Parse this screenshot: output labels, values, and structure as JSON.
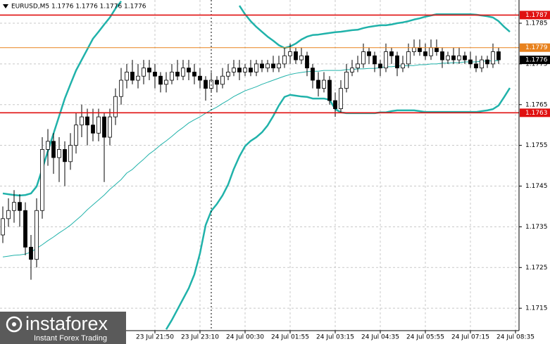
{
  "chart_data": {
    "type": "candlestick",
    "title": "EURUSD,M5  1.1776 1.1776 1.1776 1.1776",
    "ylim": [
      1.17095,
      1.17907
    ],
    "yticks": [
      1.1715,
      1.1725,
      1.1735,
      1.1745,
      1.1755,
      1.1765,
      1.1775,
      1.1785
    ],
    "grid": true,
    "categories": [
      null,
      null,
      null,
      null,
      null,
      null,
      null,
      null,
      null,
      null,
      null,
      null,
      null,
      null,
      null,
      null,
      null,
      null,
      null,
      null,
      null,
      null,
      null,
      null,
      null,
      null,
      null,
      "23 Jul 21:50",
      null,
      null,
      null,
      null,
      null,
      null,
      null,
      "23 Jul 23:10",
      null,
      null,
      null,
      null,
      null,
      null,
      null,
      "24 Jul 00:30",
      null,
      null,
      null,
      null,
      null,
      null,
      null,
      "24 Jul 01:55",
      null,
      null,
      null,
      null,
      null,
      null,
      null,
      "24 Jul 03:15",
      null,
      null,
      null,
      null,
      null,
      null,
      null,
      "24 Jul 04:35",
      null,
      null,
      null,
      null,
      null,
      null,
      null,
      "24 Jul 05:55",
      null,
      null,
      null,
      null,
      null,
      null,
      null,
      "24 Jul 07:15",
      null,
      null,
      null,
      null,
      null,
      null,
      null,
      "24 Jul 08:35"
    ],
    "ohlc": [
      [
        1.1733,
        1.174,
        1.1731,
        1.1737
      ],
      [
        1.1737,
        1.1742,
        1.1735,
        1.1739
      ],
      [
        1.1739,
        1.1744,
        1.1736,
        1.1741
      ],
      [
        1.1741,
        1.1743,
        1.1735,
        1.1739
      ],
      [
        1.1739,
        1.1741,
        1.1728,
        1.173
      ],
      [
        1.173,
        1.1733,
        1.1722,
        1.1727
      ],
      [
        1.1727,
        1.1742,
        1.1725,
        1.1739
      ],
      [
        1.1739,
        1.1757,
        1.1737,
        1.1754
      ],
      [
        1.1754,
        1.1759,
        1.175,
        1.1756
      ],
      [
        1.1756,
        1.1758,
        1.1748,
        1.1752
      ],
      [
        1.1752,
        1.1757,
        1.1746,
        1.1754
      ],
      [
        1.1754,
        1.1756,
        1.1745,
        1.1751
      ],
      [
        1.1751,
        1.1758,
        1.1749,
        1.1755
      ],
      [
        1.1755,
        1.1763,
        1.1753,
        1.176
      ],
      [
        1.176,
        1.1765,
        1.1757,
        1.1762
      ],
      [
        1.1762,
        1.1764,
        1.1755,
        1.176
      ],
      [
        1.176,
        1.1764,
        1.1756,
        1.1758
      ],
      [
        1.1758,
        1.1764,
        1.1756,
        1.1762
      ],
      [
        1.1762,
        1.1763,
        1.1746,
        1.1757
      ],
      [
        1.1757,
        1.1764,
        1.1755,
        1.1762
      ],
      [
        1.1762,
        1.1769,
        1.176,
        1.1767
      ],
      [
        1.1767,
        1.1774,
        1.1765,
        1.1771
      ],
      [
        1.1771,
        1.1775,
        1.1769,
        1.1773
      ],
      [
        1.1773,
        1.1776,
        1.177,
        1.1771
      ],
      [
        1.1771,
        1.1775,
        1.1769,
        1.1772
      ],
      [
        1.1772,
        1.1776,
        1.177,
        1.1774
      ],
      [
        1.1774,
        1.1776,
        1.1771,
        1.1773
      ],
      [
        1.1773,
        1.1775,
        1.1769,
        1.1772
      ],
      [
        1.1772,
        1.1773,
        1.1768,
        1.177
      ],
      [
        1.177,
        1.1773,
        1.1768,
        1.1771
      ],
      [
        1.1771,
        1.1775,
        1.177,
        1.1773
      ],
      [
        1.1773,
        1.1776,
        1.1771,
        1.1772
      ],
      [
        1.1772,
        1.1776,
        1.1771,
        1.1774
      ],
      [
        1.1774,
        1.1776,
        1.1771,
        1.1773
      ],
      [
        1.1773,
        1.1775,
        1.177,
        1.1772
      ],
      [
        1.1772,
        1.1774,
        1.1769,
        1.1771
      ],
      [
        1.1771,
        1.1772,
        1.1766,
        1.1769
      ],
      [
        1.1769,
        1.1773,
        1.1768,
        1.1771
      ],
      [
        1.1771,
        1.1772,
        1.1768,
        1.177
      ],
      [
        1.177,
        1.1774,
        1.1769,
        1.1772
      ],
      [
        1.1772,
        1.1775,
        1.1771,
        1.1773
      ],
      [
        1.1773,
        1.1776,
        1.1772,
        1.1774
      ],
      [
        1.1774,
        1.1776,
        1.1771,
        1.1773
      ],
      [
        1.1773,
        1.1775,
        1.1772,
        1.1774
      ],
      [
        1.1774,
        1.1776,
        1.1772,
        1.1773
      ],
      [
        1.1773,
        1.1776,
        1.1772,
        1.1775
      ],
      [
        1.1775,
        1.1776,
        1.1773,
        1.1774
      ],
      [
        1.1774,
        1.1776,
        1.1773,
        1.1775
      ],
      [
        1.1775,
        1.1777,
        1.1773,
        1.1774
      ],
      [
        1.1774,
        1.1777,
        1.1773,
        1.1775
      ],
      [
        1.1775,
        1.1779,
        1.1774,
        1.1777
      ],
      [
        1.1777,
        1.178,
        1.1775,
        1.1778
      ],
      [
        1.1778,
        1.1779,
        1.1775,
        1.1776
      ],
      [
        1.1776,
        1.1779,
        1.1775,
        1.1777
      ],
      [
        1.1777,
        1.1778,
        1.1772,
        1.1774
      ],
      [
        1.1774,
        1.1775,
        1.1769,
        1.1771
      ],
      [
        1.1771,
        1.1773,
        1.1767,
        1.1769
      ],
      [
        1.1769,
        1.1773,
        1.1768,
        1.1771
      ],
      [
        1.1771,
        1.1772,
        1.1765,
        1.1766
      ],
      [
        1.1766,
        1.1768,
        1.1762,
        1.1764
      ],
      [
        1.1764,
        1.1771,
        1.1763,
        1.1769
      ],
      [
        1.1769,
        1.1775,
        1.1768,
        1.1773
      ],
      [
        1.1773,
        1.1776,
        1.1772,
        1.1774
      ],
      [
        1.1774,
        1.1777,
        1.1773,
        1.1775
      ],
      [
        1.1775,
        1.178,
        1.1774,
        1.1778
      ],
      [
        1.1778,
        1.1779,
        1.1775,
        1.1777
      ],
      [
        1.1777,
        1.1778,
        1.1773,
        1.1775
      ],
      [
        1.1775,
        1.1776,
        1.1772,
        1.1774
      ],
      [
        1.1774,
        1.178,
        1.1773,
        1.1778
      ],
      [
        1.1778,
        1.1779,
        1.1775,
        1.1777
      ],
      [
        1.1777,
        1.1778,
        1.1772,
        1.1774
      ],
      [
        1.1774,
        1.1777,
        1.1773,
        1.1775
      ],
      [
        1.1775,
        1.178,
        1.1774,
        1.1778
      ],
      [
        1.1778,
        1.1781,
        1.1777,
        1.1779
      ],
      [
        1.1779,
        1.1781,
        1.1777,
        1.1778
      ],
      [
        1.1778,
        1.178,
        1.1776,
        1.1777
      ],
      [
        1.1777,
        1.1781,
        1.1776,
        1.1779
      ],
      [
        1.1779,
        1.1781,
        1.1777,
        1.1778
      ],
      [
        1.1778,
        1.1779,
        1.1774,
        1.1776
      ],
      [
        1.1776,
        1.1778,
        1.1775,
        1.1777
      ],
      [
        1.1777,
        1.1779,
        1.1775,
        1.1776
      ],
      [
        1.1776,
        1.1779,
        1.1775,
        1.1777
      ],
      [
        1.1777,
        1.1778,
        1.1775,
        1.1776
      ],
      [
        1.1776,
        1.1778,
        1.1774,
        1.1775
      ],
      [
        1.1775,
        1.1777,
        1.1773,
        1.1774
      ],
      [
        1.1774,
        1.1777,
        1.1773,
        1.1776
      ],
      [
        1.1776,
        1.1777,
        1.1774,
        1.1775
      ],
      [
        1.1775,
        1.178,
        1.1774,
        1.1778
      ],
      [
        1.1778,
        1.1779,
        1.1775,
        1.1776
      ],
      null,
      null,
      null
    ],
    "series": [
      {
        "color": "#20b2aa",
        "values": [
          1.17432,
          1.1743,
          1.17428,
          1.17427,
          1.17428,
          1.17432,
          1.17449,
          1.17492,
          1.17536,
          1.17579,
          1.17622,
          1.17665,
          1.177,
          1.17734,
          1.1776,
          1.17786,
          1.17812,
          1.17829,
          1.17847,
          1.17864,
          1.17886,
          1.17904,
          null,
          null,
          null,
          null,
          null,
          null,
          null,
          null,
          null,
          null,
          null,
          null,
          null,
          null,
          null,
          null,
          null,
          null,
          null,
          null,
          1.17893,
          1.17872,
          1.17855,
          1.17841,
          1.17829,
          1.17817,
          1.17807,
          1.17796,
          1.17789,
          1.17793,
          1.178,
          1.1781,
          1.17817,
          1.17821,
          1.17822,
          1.17824,
          1.17826,
          1.17828,
          1.17829,
          1.17831,
          1.17833,
          1.17834,
          1.17838,
          1.17841,
          1.17843,
          1.17845,
          1.17845,
          1.17847,
          1.1785,
          1.17852,
          1.17855,
          1.17859,
          1.17862,
          1.17866,
          1.17869,
          1.17872,
          1.17872,
          1.17872,
          1.17872,
          1.17872,
          1.17872,
          1.17872,
          1.17871,
          1.17869,
          1.17867,
          1.17864,
          1.17855,
          1.17841,
          1.17829,
          null
        ]
      },
      {
        "color": "#20b2aa",
        "values": [
          null,
          null,
          null,
          null,
          null,
          null,
          null,
          null,
          null,
          null,
          null,
          null,
          null,
          null,
          null,
          null,
          null,
          null,
          null,
          null,
          null,
          null,
          null,
          null,
          null,
          null,
          null,
          null,
          null,
          1.17098,
          1.17121,
          1.17147,
          1.17173,
          1.17199,
          1.17233,
          1.17285,
          1.17354,
          1.17389,
          1.17406,
          1.17427,
          1.17454,
          1.17492,
          1.17523,
          1.17548,
          1.17561,
          1.1757,
          1.17582,
          1.17599,
          1.17622,
          1.17648,
          1.17669,
          1.17674,
          1.17672,
          1.1767,
          1.17669,
          1.17665,
          1.17665,
          1.17665,
          1.17662,
          1.17639,
          1.17631,
          1.17629,
          1.17629,
          1.17629,
          1.17629,
          1.17629,
          1.17629,
          1.17631,
          1.17631,
          1.17634,
          1.17636,
          1.17636,
          1.17636,
          1.17636,
          1.17634,
          1.17632,
          1.17632,
          1.17632,
          1.17632,
          1.17632,
          1.17632,
          1.17632,
          1.17632,
          1.17632,
          1.17632,
          1.17634,
          1.17636,
          1.17639,
          1.17648,
          1.17669,
          1.17691,
          null
        ]
      },
      {
        "color": "#20b2aa",
        "values": [
          1.17276,
          1.17278,
          1.1728,
          1.17281,
          1.17283,
          1.17288,
          1.17297,
          1.17306,
          1.17316,
          1.17325,
          1.17335,
          1.17344,
          1.17354,
          1.17366,
          1.17378,
          1.17392,
          1.17404,
          1.17416,
          1.17428,
          1.17442,
          1.17454,
          1.17466,
          1.17482,
          1.17491,
          1.17504,
          1.17516,
          1.17529,
          1.17539,
          1.17551,
          1.17561,
          1.17572,
          1.17584,
          1.17594,
          1.17605,
          1.17613,
          1.1762,
          1.17629,
          1.17637,
          1.17644,
          1.17653,
          1.17661,
          1.1767,
          1.17677,
          1.17684,
          1.17689,
          1.17694,
          1.177,
          1.17705,
          1.1771,
          1.17715,
          1.1772,
          1.17724,
          1.17727,
          1.17729,
          1.17731,
          1.17732,
          1.17732,
          1.17734,
          1.17734,
          1.17734,
          1.17734,
          1.17736,
          1.17736,
          1.17738,
          1.17738,
          1.17739,
          1.17739,
          1.17741,
          1.17743,
          1.17743,
          1.17745,
          1.17745,
          1.17746,
          1.17746,
          1.17748,
          1.17748,
          1.1775,
          1.1775,
          1.17752,
          1.17752,
          1.17753,
          1.17753,
          1.17755,
          1.17755,
          1.17755,
          1.17757,
          1.17757,
          1.17758,
          1.17758,
          null,
          null,
          null
        ]
      }
    ],
    "levels": [
      {
        "value": 1.1787,
        "color": "#e01010"
      },
      {
        "value": 1.1779,
        "color": "#e8821e"
      },
      {
        "value": 1.1763,
        "color": "#e01010"
      }
    ],
    "last_price": 1.1776
  },
  "logo": {
    "brand": "instaforex",
    "tagline": "Instant Forex Trading"
  }
}
